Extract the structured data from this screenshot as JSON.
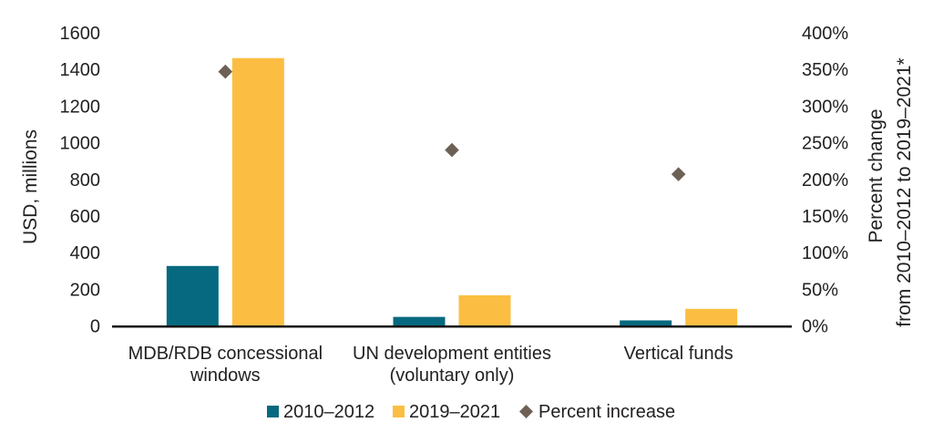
{
  "chart_data": {
    "type": "bar",
    "subtype": "grouped-bars-with-secondary-scatter",
    "title": "",
    "categories": [
      "MDB/RDB concessional windows",
      "UN development entities (voluntary only)",
      "Vertical funds"
    ],
    "category_label_lines": [
      [
        "MDB/RDB concessional",
        "windows"
      ],
      [
        "UN development entities",
        "(voluntary only)"
      ],
      [
        "Vertical funds"
      ]
    ],
    "series": [
      {
        "name": "2010–2012",
        "type": "bar",
        "axis": "left",
        "color": "#07697f",
        "values": [
          327,
          49,
          30
        ]
      },
      {
        "name": "2019–2021",
        "type": "bar",
        "axis": "left",
        "color": "#fcbe42",
        "values": [
          1462,
          167,
          93
        ]
      },
      {
        "name": "Percent increase",
        "type": "diamond",
        "axis": "right",
        "color": "#6d6156",
        "values": [
          347,
          240,
          207
        ]
      }
    ],
    "left_axis": {
      "label": "USD, millions",
      "min": 0,
      "max": 1600,
      "step": 200,
      "ticks": [
        "0",
        "200",
        "400",
        "600",
        "800",
        "1000",
        "1200",
        "1400",
        "1600"
      ]
    },
    "right_axis": {
      "label_line1": "Percent change",
      "label_line2": "from 2010–2012 to 2019–2021*",
      "min": 0,
      "max": 400,
      "step": 50,
      "ticks": [
        "0%",
        "50%",
        "100%",
        "150%",
        "200%",
        "250%",
        "300%",
        "350%",
        "400%"
      ]
    },
    "grid": false,
    "legend_position": "bottom"
  },
  "colors": {
    "background": "#ffffff",
    "text": "#232021",
    "axis_line": "#141414",
    "bar_2010_2012": "#07697f",
    "bar_2010_2012_edge": "#8fbfca",
    "bar_2019_2021": "#fcbe42",
    "percent_diamond": "#6d6156"
  },
  "legend": {
    "items": [
      {
        "swatch": "square-teal-icon",
        "label": "2010–2012"
      },
      {
        "swatch": "square-yellow-icon",
        "label": "2019–2021"
      },
      {
        "swatch": "diamond-gray-icon",
        "label": "Percent increase"
      }
    ]
  }
}
